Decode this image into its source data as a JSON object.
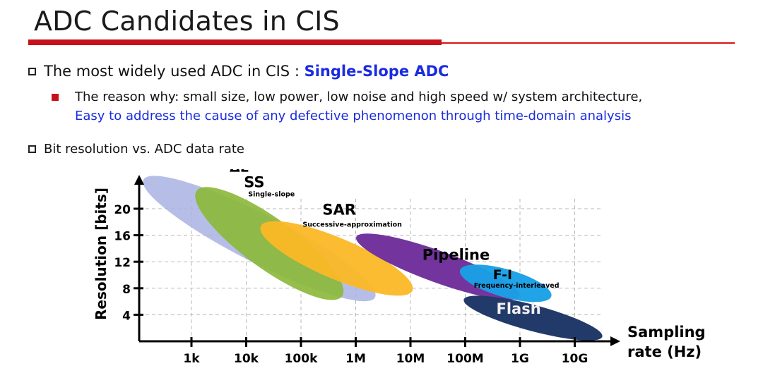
{
  "slide": {
    "title": "ADC Candidates in CIS",
    "bullet1_prefix": "The most widely used ADC in CIS : ",
    "bullet1_highlight": "Single-Slope ADC",
    "sub_bullet_line1": "The reason why: small size, low power, low noise and high speed w/ system architecture,",
    "sub_bullet_line2": "Easy to address the cause of any defective phenomenon through time-domain analysis",
    "bullet2": "Bit resolution vs. ADC data rate"
  },
  "colors": {
    "title_rule": "#c8101a",
    "highlight": "#1a2be0"
  },
  "chart_data": {
    "type": "scatter",
    "title": "",
    "xlabel_line1": "Sampling",
    "xlabel_line2": "rate (Hz)",
    "ylabel": "Resolution [bits]",
    "x_scale": "log",
    "x_ticks": [
      "1k",
      "10k",
      "100k",
      "1M",
      "10M",
      "100M",
      "1G",
      "10G"
    ],
    "x_tick_values": [
      1000,
      10000,
      100000,
      1000000,
      10000000,
      100000000,
      1000000000,
      10000000000
    ],
    "y_ticks": [
      4,
      8,
      12,
      16,
      20
    ],
    "grid": true,
    "regions": [
      {
        "name": "ΔΣ",
        "subtitle": "",
        "color": "#a9b3e3",
        "center_x": 20000,
        "center_y": 15.5,
        "min_x": 100,
        "max_x": 3000000,
        "min_y": 9,
        "max_y": 22
      },
      {
        "name": "SS",
        "subtitle": "Single-slope",
        "color": "#8cb83c",
        "center_x": 50000,
        "center_y": 15,
        "min_x": 1000,
        "max_x": 700000,
        "min_y": 8,
        "max_y": 21.5
      },
      {
        "name": "SAR",
        "subtitle": "Successive-approximation",
        "color": "#fbb826",
        "center_x": 1000000,
        "center_y": 12.5,
        "min_x": 20000,
        "max_x": 10000000,
        "min_y": 7,
        "max_y": 18
      },
      {
        "name": "Pipeline",
        "subtitle": "",
        "color": "#6e2e9a",
        "center_x": 20000000,
        "center_y": 11,
        "min_x": 1000000,
        "max_x": 1000000000,
        "min_y": 7,
        "max_y": 15.5
      },
      {
        "name": "F-I",
        "subtitle": "Frequency-interleaved",
        "color": "#1aa0e6",
        "center_x": 500000000,
        "center_y": 9,
        "min_x": 100000000,
        "max_x": 3000000000,
        "min_y": 5,
        "max_y": 12.5
      },
      {
        "name": "Flash",
        "subtitle": "",
        "color": "#223a6a",
        "center_x": 2000000000,
        "center_y": 4,
        "min_x": 100000000,
        "max_x": 30000000000,
        "min_y": 0,
        "max_y": 7
      }
    ]
  }
}
